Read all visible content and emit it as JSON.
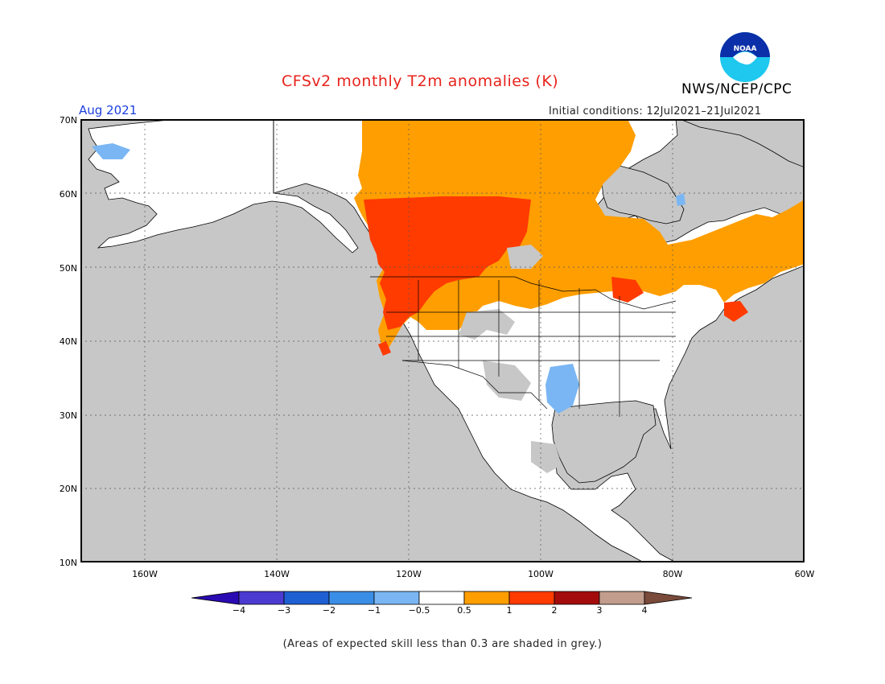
{
  "header": {
    "title": "CFSv2 monthly T2m anomalies (K)",
    "month": "Aug 2021",
    "agency": "NWS/NCEP/CPC",
    "initial_conditions": "Initial conditions: 12Jul2021–21Jul2021",
    "logo_text": "NOAA"
  },
  "axes": {
    "lat_labels": [
      "70N",
      "60N",
      "50N",
      "40N",
      "30N",
      "20N",
      "10N"
    ],
    "lon_labels": [
      "160W",
      "140W",
      "120W",
      "100W",
      "80W",
      "60W"
    ]
  },
  "colorbar": {
    "labels": [
      "−4",
      "−3",
      "−2",
      "−1",
      "−0.5",
      "0.5",
      "1",
      "2",
      "3",
      "4"
    ],
    "colors": [
      "#2a0ab2",
      "#4b3bd0",
      "#1e5fd2",
      "#3b8ee6",
      "#7ab6f4",
      "#ffffff",
      "#ff9e00",
      "#ff3b00",
      "#a40c0c",
      "#c29c8c",
      "#7a4a3a"
    ]
  },
  "colors": {
    "grey_skill": "#c7c7c7",
    "title_red": "#e8231c",
    "month_blue": "#1a3fe0"
  },
  "footer": {
    "note": "(Areas of expected skill less than 0.3 are shaded in grey.)"
  }
}
